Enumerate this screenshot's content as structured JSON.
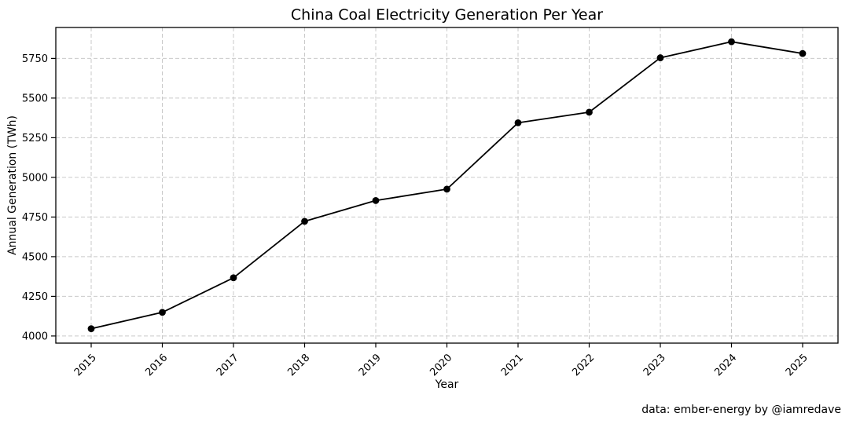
{
  "chart_data": {
    "type": "line",
    "title": "China Coal Electricity Generation Per Year",
    "xlabel": "Year",
    "ylabel": "Annual Generation (TWh)",
    "categories": [
      "2015",
      "2016",
      "2017",
      "2018",
      "2019",
      "2020",
      "2021",
      "2022",
      "2023",
      "2024",
      "2025"
    ],
    "series": [
      {
        "name": "Annual Generation (TWh)",
        "values": [
          4046,
          4149,
          4367,
          4723,
          4854,
          4926,
          5344,
          5411,
          5754,
          5855,
          5781
        ]
      }
    ],
    "yticks": [
      4000,
      4250,
      4500,
      4750,
      5000,
      5250,
      5500,
      5750
    ],
    "ylim": [
      3955,
      5945
    ],
    "grid": true,
    "grid_linestyle": "dashed",
    "legend_position": "none",
    "line_color": "#000000",
    "marker": "circle",
    "marker_color": "#000000",
    "grid_color": "#c9c9c9",
    "spine_color": "#000000",
    "background_color": "#ffffff"
  },
  "annotation": {
    "source_credit": "data: ember-energy by @iamredave"
  }
}
